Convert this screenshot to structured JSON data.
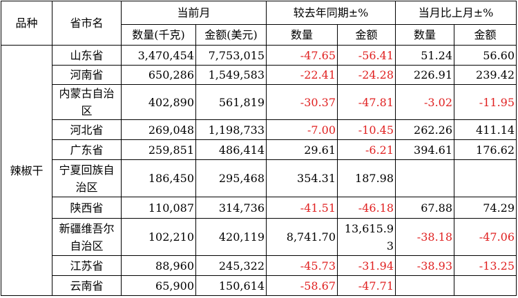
{
  "header": {
    "variety": "品种",
    "province": "省市名",
    "current_month": "当前月",
    "yoy": "较去年同期±%",
    "mom": "当月比上月±%",
    "quantity_kg": "数量(千克)",
    "amount_usd": "金额(美元)",
    "quantity": "数量",
    "amount": "金额",
    "quantity_2": "数量",
    "amount_2": "金额"
  },
  "table": {
    "variety": "辣椒干",
    "rows": [
      [
        "山东省",
        "3,470,454",
        "7,753,015",
        "-47.65",
        "-56.41",
        "51.24",
        "56.60"
      ],
      [
        "河南省",
        "650,286",
        "1,549,583",
        "-22.41",
        "-24.28",
        "226.91",
        "239.42"
      ],
      [
        "内蒙古自治区",
        "402,890",
        "561,819",
        "-30.37",
        "-47.81",
        "-3.02",
        "-11.95"
      ],
      [
        "河北省",
        "269,048",
        "1,198,733",
        "-7.00",
        "-10.45",
        "262.26",
        "411.14"
      ],
      [
        "广东省",
        "259,851",
        "486,414",
        "29.61",
        "-6.21",
        "394.61",
        "176.62"
      ],
      [
        "宁夏回族自治区",
        "186,450",
        "295,468",
        "354.31",
        "187.98",
        null,
        null
      ],
      [
        "陕西省",
        "110,087",
        "314,736",
        "-41.51",
        "-46.18",
        "67.88",
        "74.29"
      ],
      [
        "新疆维吾尔自治区",
        "102,210",
        "420,119",
        "8,741.70",
        "13,615.93",
        "-38.18",
        "-47.06"
      ],
      [
        "江苏省",
        "88,960",
        "245,322",
        "-45.73",
        "-31.94",
        "-38.93",
        "-13.25"
      ],
      [
        "云南省",
        "65,900",
        "150,614",
        "-58.67",
        "-47.71",
        null,
        null
      ]
    ]
  }
}
